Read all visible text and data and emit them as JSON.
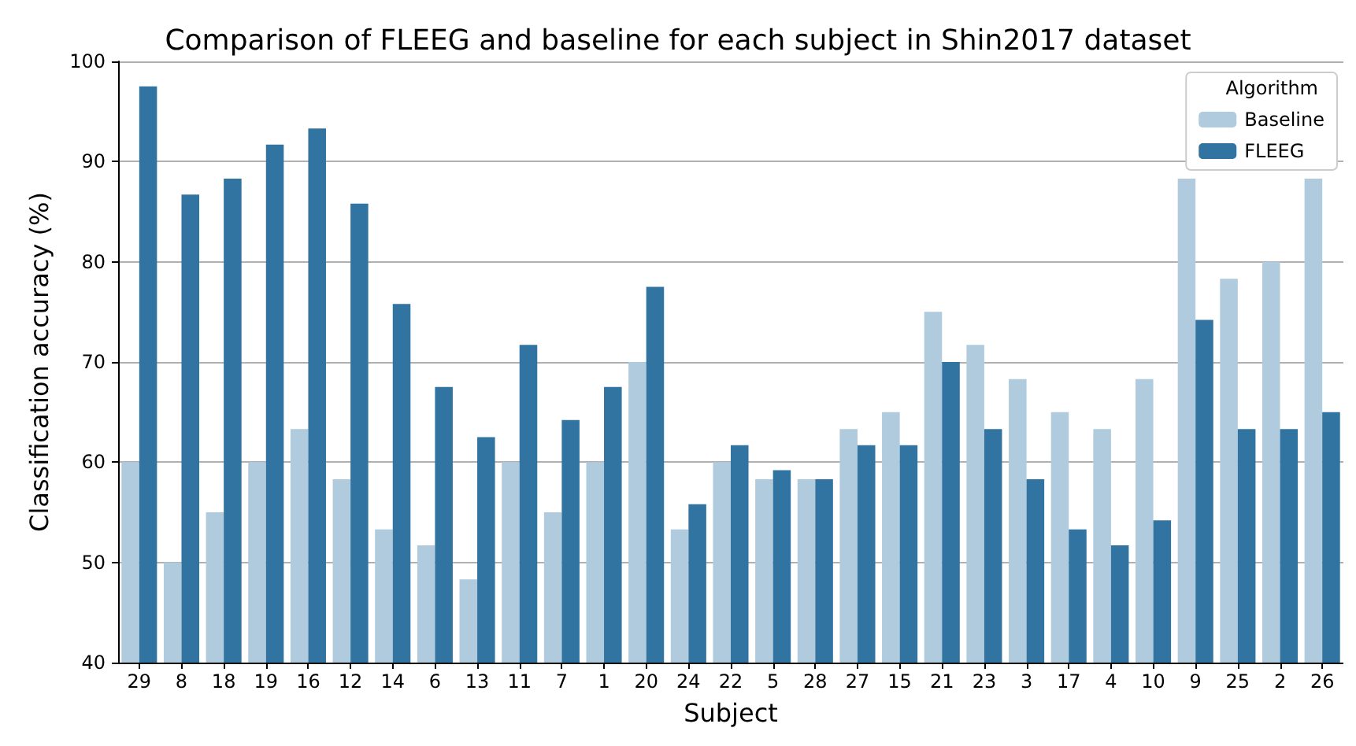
{
  "chart_data": {
    "type": "bar",
    "title": "Comparison of FLEEG and baseline for each subject in Shin2017 dataset",
    "xlabel": "Subject",
    "ylabel": "Classification accuracy (%)",
    "legend_title": "Algorithm",
    "categories": [
      "29",
      "8",
      "18",
      "19",
      "16",
      "12",
      "14",
      "6",
      "13",
      "11",
      "7",
      "1",
      "20",
      "24",
      "22",
      "5",
      "28",
      "27",
      "15",
      "21",
      "23",
      "3",
      "17",
      "4",
      "10",
      "9",
      "25",
      "2",
      "26"
    ],
    "series": [
      {
        "name": "Baseline",
        "color": "#afcbdd",
        "values": [
          60,
          50,
          55,
          60,
          63.3,
          58.3,
          53.3,
          51.7,
          48.3,
          60,
          55,
          60,
          70,
          53.3,
          60,
          58.3,
          58.3,
          63.3,
          65,
          75,
          71.7,
          68.3,
          65,
          63.3,
          68.3,
          88.3,
          78.3,
          80,
          88.3
        ]
      },
      {
        "name": "FLEEG",
        "color": "#3274a1",
        "values": [
          97.5,
          86.7,
          88.3,
          91.7,
          93.3,
          85.8,
          75.8,
          67.5,
          62.5,
          71.7,
          64.2,
          67.5,
          77.5,
          55.8,
          61.7,
          59.2,
          58.3,
          61.7,
          61.7,
          70,
          63.3,
          58.3,
          53.3,
          51.7,
          54.2,
          74.2,
          63.3,
          63.3,
          65
        ]
      }
    ],
    "ylim": [
      40,
      100
    ],
    "yticks": [
      40,
      50,
      60,
      70,
      80,
      90,
      100
    ],
    "grid": "y",
    "legend": "top right"
  }
}
